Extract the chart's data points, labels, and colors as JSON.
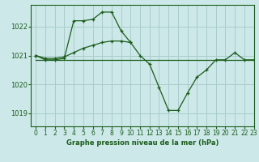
{
  "bg_color": "#cce8e8",
  "grid_color": "#aacccc",
  "line_color": "#1a5c1a",
  "title": "Graphe pression niveau de la mer (hPa)",
  "xlim": [
    -0.5,
    23
  ],
  "ylim": [
    1018.55,
    1022.75
  ],
  "yticks": [
    1019,
    1020,
    1021,
    1022
  ],
  "xticks": [
    0,
    1,
    2,
    3,
    4,
    5,
    6,
    7,
    8,
    9,
    10,
    11,
    12,
    13,
    14,
    15,
    16,
    17,
    18,
    19,
    20,
    21,
    22,
    23
  ],
  "series_flat_x": [
    0,
    1,
    2,
    3,
    4,
    5,
    6,
    7,
    8,
    9,
    10,
    11,
    12,
    13,
    14,
    15,
    16,
    17,
    18,
    19,
    20,
    21,
    22,
    23
  ],
  "series_flat_y": [
    1020.85,
    1020.85,
    1020.85,
    1020.85,
    1020.85,
    1020.85,
    1020.85,
    1020.85,
    1020.85,
    1020.85,
    1020.85,
    1020.85,
    1020.85,
    1020.85,
    1020.85,
    1020.85,
    1020.85,
    1020.85,
    1020.85,
    1020.85,
    1020.85,
    1020.85,
    1020.85,
    1020.85
  ],
  "series_diag_x": [
    0,
    1,
    2,
    3,
    4,
    5,
    6,
    7,
    8,
    9,
    10
  ],
  "series_diag_y": [
    1021.0,
    1020.9,
    1020.9,
    1020.95,
    1021.1,
    1021.25,
    1021.35,
    1021.45,
    1021.5,
    1021.5,
    1021.45
  ],
  "series_main_x": [
    0,
    1,
    2,
    3,
    4,
    5,
    6,
    7,
    8,
    9,
    10,
    11,
    12,
    13,
    14,
    15,
    16,
    17,
    18,
    19,
    20,
    21,
    22,
    23
  ],
  "series_main_y": [
    1021.0,
    1020.85,
    1020.85,
    1020.9,
    1022.2,
    1022.2,
    1022.25,
    1022.5,
    1022.5,
    1021.85,
    1021.45,
    1021.0,
    1020.7,
    1019.9,
    1019.1,
    1019.1,
    1019.7,
    1020.25,
    1020.5,
    1020.85,
    1020.85,
    1021.1,
    1020.85,
    1020.85
  ]
}
